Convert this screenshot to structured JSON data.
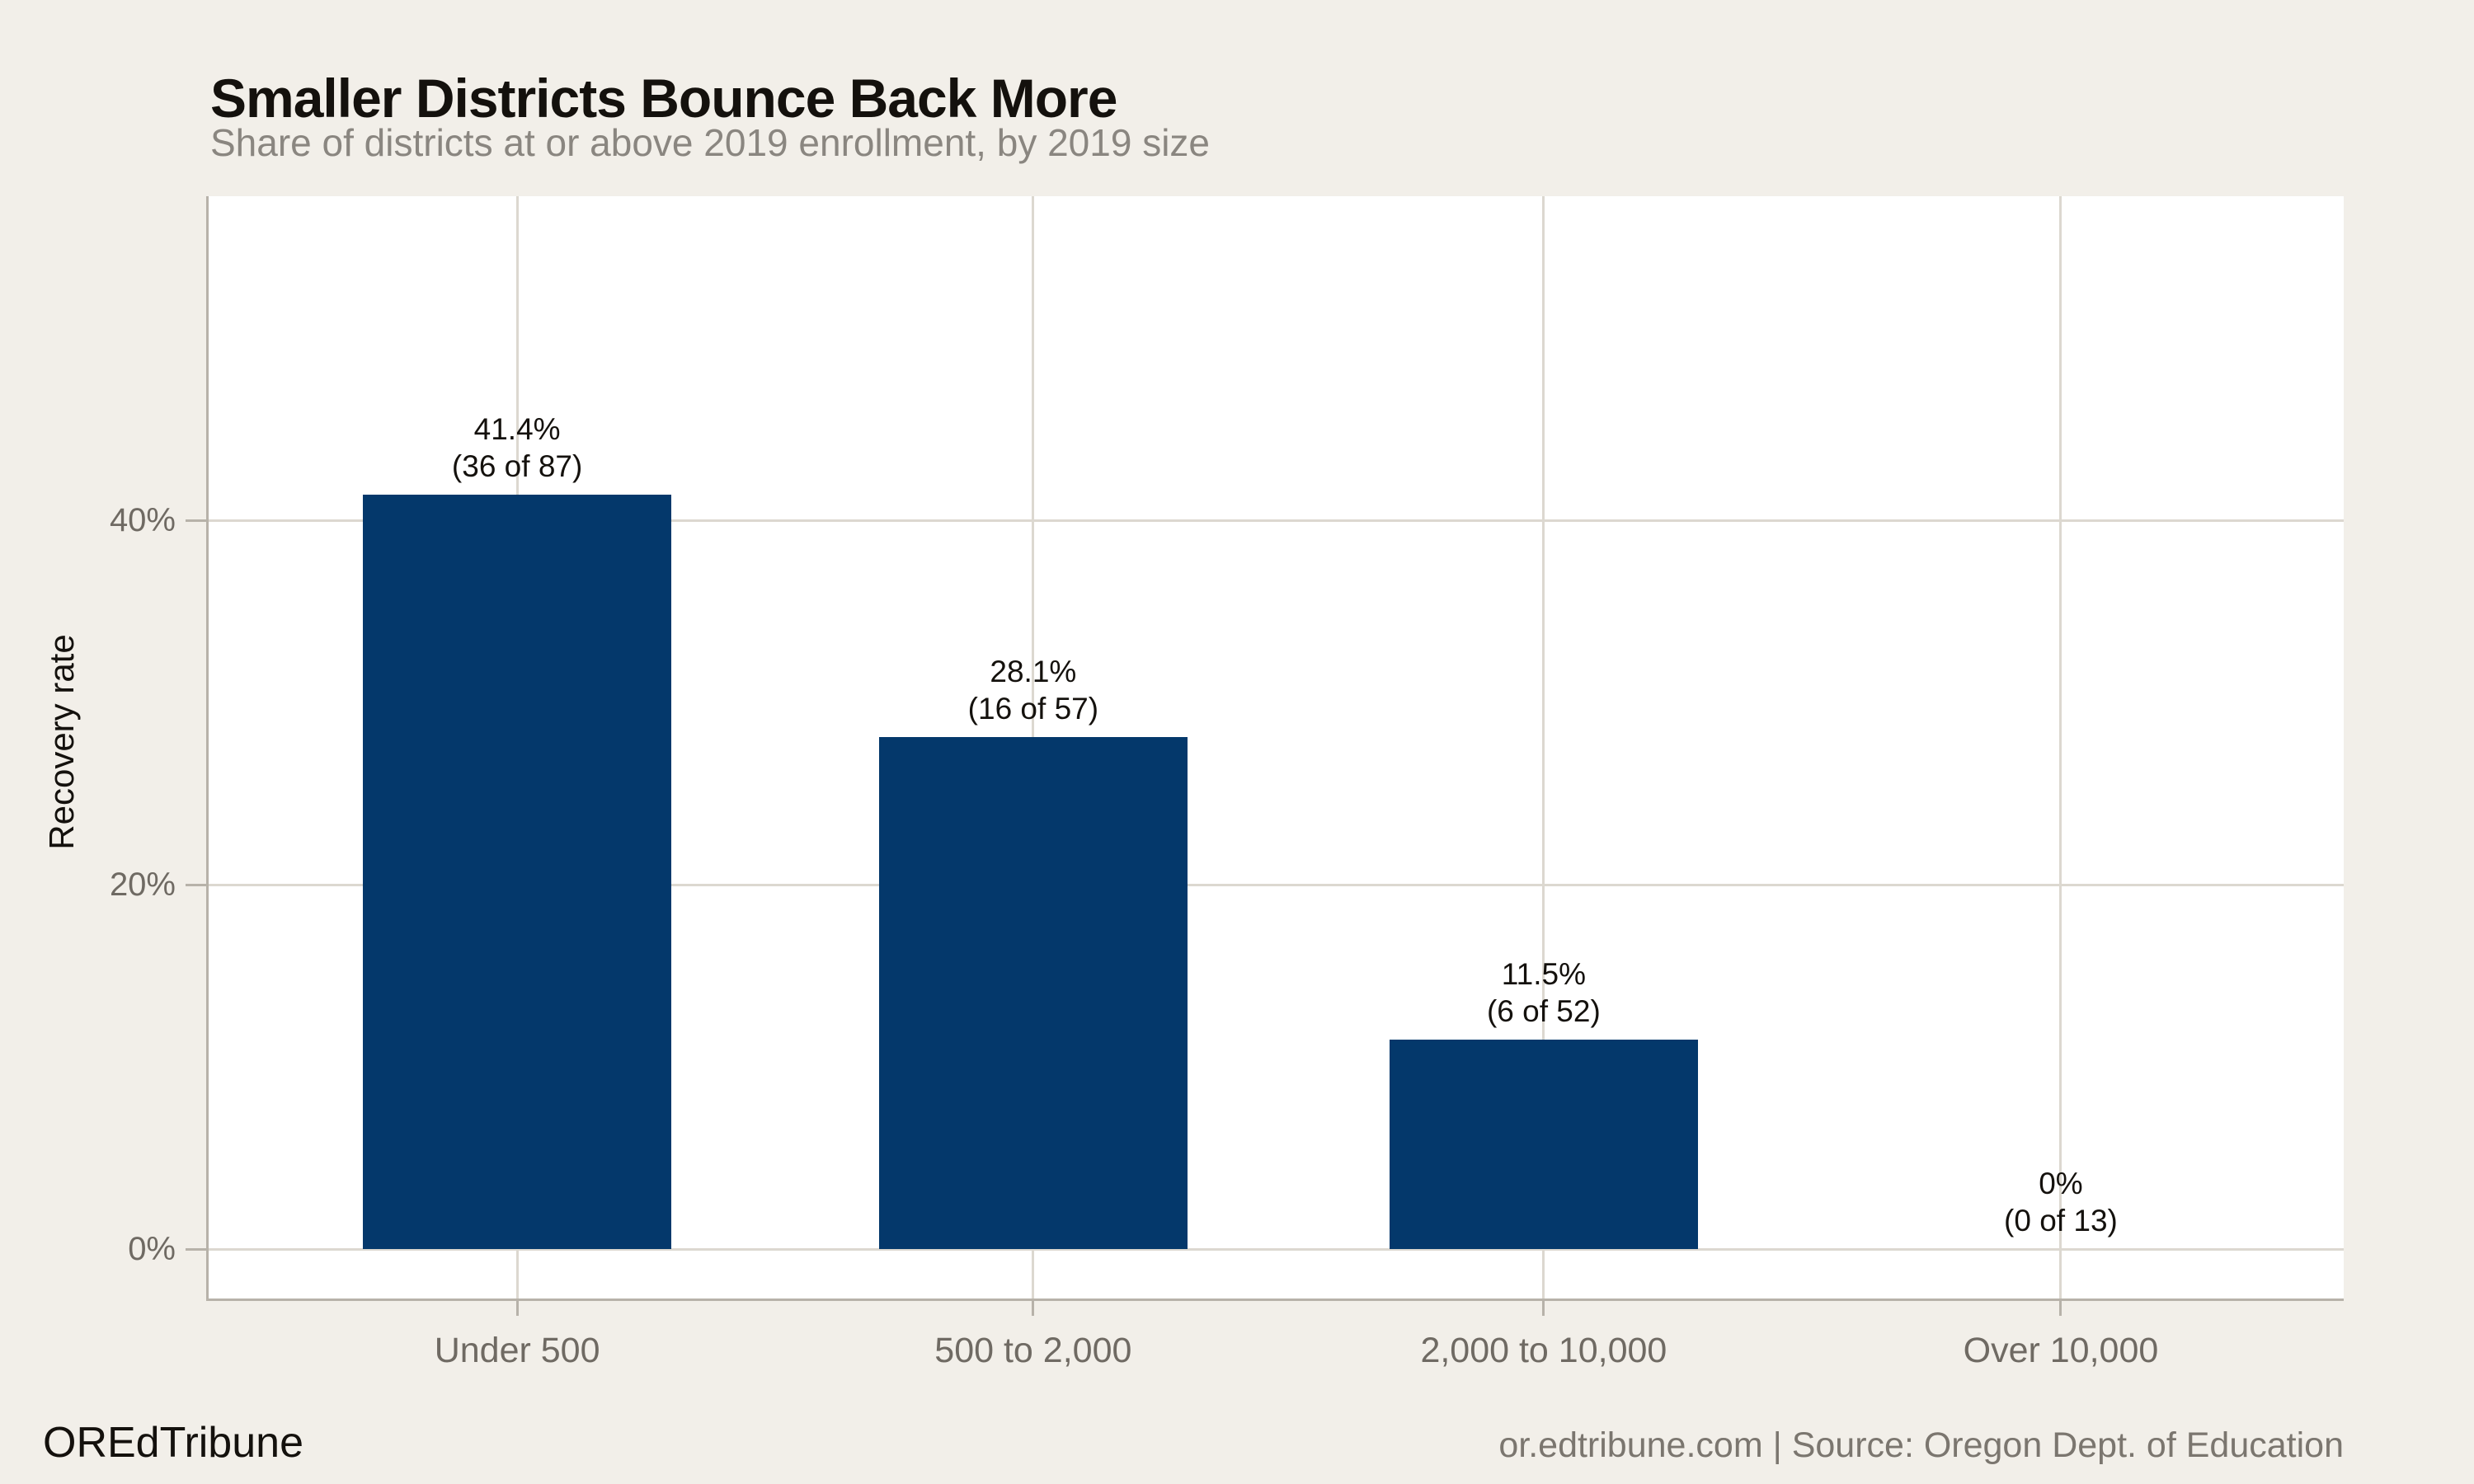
{
  "header": {
    "title": "Smaller Districts Bounce Back More",
    "subtitle": "Share of districts at or above 2019 enrollment, by 2019 size"
  },
  "footer": {
    "brand": "OREdTribune",
    "source": "or.edtribune.com | Source: Oregon Dept. of Education"
  },
  "colors": {
    "background": "#f2efe9",
    "panel": "#ffffff",
    "bar": "#04386b",
    "gridline": "#dcd8d0",
    "axis_line": "#b7b2a9",
    "title_text": "#14110d",
    "subtitle_text": "#8a8680",
    "tick_text": "#6f6a63",
    "bar_label_text": "#14110d",
    "axis_title_text": "#14110d",
    "footer_brand_text": "#14110d",
    "footer_source_text": "#7b766f"
  },
  "chart_data": {
    "type": "bar",
    "title": "Smaller Districts Bounce Back More",
    "subtitle": "Share of districts at or above 2019 enrollment, by 2019 size",
    "categories": [
      "Under 500",
      "500 to 2,000",
      "2,000 to 10,000",
      "Over 10,000"
    ],
    "values": [
      41.4,
      28.1,
      11.5,
      0
    ],
    "counts": [
      {
        "recovered": 36,
        "total": 87
      },
      {
        "recovered": 16,
        "total": 57
      },
      {
        "recovered": 6,
        "total": 52
      },
      {
        "recovered": 0,
        "total": 13
      }
    ],
    "bar_labels": [
      [
        "41.4%",
        "(36 of 87)"
      ],
      [
        "28.1%",
        "(16 of 57)"
      ],
      [
        "11.5%",
        "(6 of 52)"
      ],
      [
        "0%",
        "(0 of 13)"
      ]
    ],
    "xlabel": "",
    "ylabel": "Recovery rate",
    "yticks": [
      0,
      20,
      40
    ],
    "ytick_labels": [
      "0%",
      "20%",
      "40%"
    ],
    "ylim": [
      -2.7,
      57.8
    ],
    "grid": "both",
    "legend": "none",
    "source": "or.edtribune.com | Source: Oregon Dept. of Education"
  }
}
